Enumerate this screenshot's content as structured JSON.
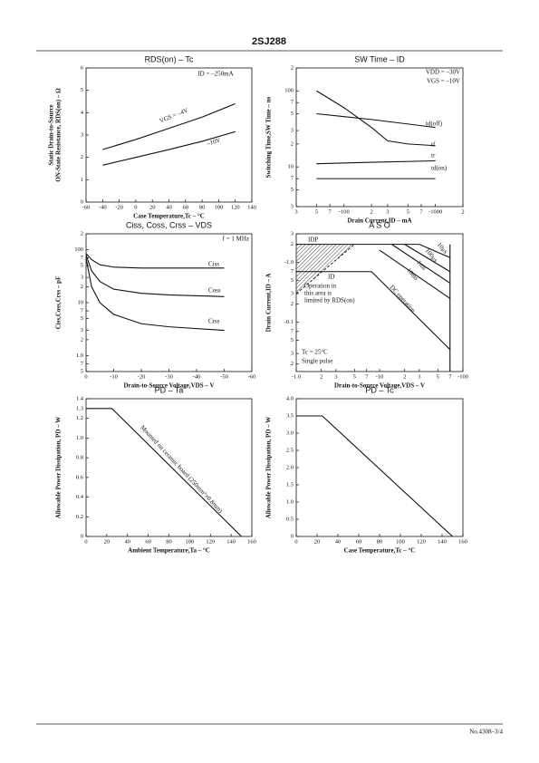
{
  "header": {
    "title": "2SJ288"
  },
  "footer": {
    "text": "No.4308–3/4"
  },
  "chart_data": [
    {
      "type": "line",
      "title": "RDS(on) – Tc",
      "xlabel": "Case Temperature,Tc – °C",
      "ylabel": [
        "Static Drain-to-Source",
        "ON-State Resistance, RDS(on) – Ω"
      ],
      "xlim": [
        -60,
        140
      ],
      "xticks": [
        -60,
        -40,
        -20,
        0,
        20,
        40,
        60,
        80,
        100,
        120,
        140
      ],
      "ylim": [
        0,
        6
      ],
      "yticks": [
        0,
        1,
        2,
        3,
        4,
        5,
        6
      ],
      "annotations": [
        "ID = –250mA"
      ],
      "series": [
        {
          "name": "VGS = –4V",
          "color": "#111111",
          "x": [
            -40,
            0,
            40,
            80,
            120
          ],
          "values": [
            2.35,
            2.8,
            3.3,
            3.8,
            4.4
          ]
        },
        {
          "name": "–10V",
          "color": "#111111",
          "x": [
            -40,
            0,
            40,
            80,
            120
          ],
          "values": [
            1.65,
            2.0,
            2.35,
            2.72,
            3.15
          ]
        }
      ]
    },
    {
      "type": "line",
      "title": "SW Time – ID",
      "xlabel": "Drain Current,ID – mA",
      "ylabel": [
        "Switching Time,SW Time – ns"
      ],
      "xscale": "log",
      "yscale": "log",
      "xlim": [
        -30,
        -2000
      ],
      "xticks": [
        {
          "value": -30,
          "label": "3"
        },
        {
          "value": -50,
          "label": "5"
        },
        {
          "value": -70,
          "label": "7"
        },
        -100,
        {
          "value": -200,
          "label": "2"
        },
        {
          "value": -300,
          "label": "3"
        },
        {
          "value": -500,
          "label": "5"
        },
        {
          "value": -700,
          "label": "7"
        },
        -1000,
        {
          "value": -2000,
          "label": "2"
        }
      ],
      "ylim": [
        3,
        200
      ],
      "yticks": [
        3,
        5,
        7,
        10,
        {
          "value": 20,
          "label": "2"
        },
        {
          "value": 30,
          "label": "3"
        },
        {
          "value": 50,
          "label": "5"
        },
        {
          "value": 70,
          "label": "7"
        },
        100,
        {
          "value": 200,
          "label": "2"
        }
      ],
      "annotations": [
        "VDD = –30V",
        "VGS = –10V"
      ],
      "series": [
        {
          "name": "td(off)",
          "color": "#111111",
          "x": [
            -50,
            -200,
            -1000
          ],
          "values": [
            50,
            42,
            33
          ]
        },
        {
          "name": "tf",
          "color": "#111111",
          "x": [
            -50,
            -100,
            -200,
            -300,
            -500,
            -1000
          ],
          "values": [
            100,
            60,
            33,
            22,
            20,
            19
          ]
        },
        {
          "name": "tr",
          "color": "#111111",
          "x": [
            -50,
            -200,
            -1000
          ],
          "values": [
            11,
            11.5,
            12
          ]
        },
        {
          "name": "td(on)",
          "color": "#111111",
          "x": [
            -50,
            -1000
          ],
          "values": [
            7,
            7
          ]
        }
      ]
    },
    {
      "type": "line",
      "title": "Ciss, Coss, Crss – VDS",
      "xlabel": "Drain-to-Source Voltage,VDS – V",
      "ylabel": [
        "Ciss,Coss,Crss – pF"
      ],
      "yscale": "log",
      "xlim": [
        0,
        -60
      ],
      "xticks": [
        0,
        -10,
        -20,
        -30,
        -40,
        -50,
        -60
      ],
      "ylim": [
        0.5,
        200
      ],
      "yticks": [
        {
          "value": 0.5,
          "label": "5"
        },
        {
          "value": 0.7,
          "label": "7"
        },
        {
          "value": 1,
          "label": "1.0"
        },
        2,
        3,
        5,
        7,
        10,
        {
          "value": 20,
          "label": "2"
        },
        {
          "value": 30,
          "label": "3"
        },
        {
          "value": 50,
          "label": "5"
        },
        {
          "value": 70,
          "label": "7"
        },
        100,
        {
          "value": 200,
          "label": "2"
        }
      ],
      "annotations": [
        "f = 1 MHz"
      ],
      "series": [
        {
          "name": "Ciss",
          "color": "#111111",
          "x": [
            0,
            -2,
            -5,
            -10,
            -20,
            -50
          ],
          "values": [
            85,
            65,
            52,
            47,
            45,
            45
          ]
        },
        {
          "name": "Coss",
          "color": "#111111",
          "x": [
            0,
            -2,
            -5,
            -10,
            -20,
            -30,
            -50
          ],
          "values": [
            80,
            40,
            25,
            18,
            15,
            14,
            13
          ]
        },
        {
          "name": "Crss",
          "color": "#111111",
          "x": [
            0,
            -2,
            -5,
            -10,
            -20,
            -30,
            -50
          ],
          "values": [
            70,
            20,
            10,
            6,
            4,
            3.5,
            3
          ]
        }
      ]
    },
    {
      "type": "line",
      "title": "A S O",
      "xlabel": "Drain-to-Source Voltage,VDS – V",
      "ylabel": [
        "Drain Current,ID – A"
      ],
      "xscale": "log",
      "yscale": "log",
      "xlim": [
        -1,
        -100
      ],
      "xticks": [
        {
          "value": -1,
          "label": "-1.0"
        },
        {
          "value": -2,
          "label": "2"
        },
        {
          "value": -3,
          "label": "3"
        },
        {
          "value": -5,
          "label": "5"
        },
        {
          "value": -7,
          "label": "7"
        },
        -10,
        {
          "value": -20,
          "label": "2"
        },
        {
          "value": -30,
          "label": "3"
        },
        {
          "value": -50,
          "label": "5"
        },
        {
          "value": -70,
          "label": "7"
        },
        -100
      ],
      "ylim": [
        -0.015,
        -3
      ],
      "yticks": [
        {
          "value": -0.02,
          "label": "2"
        },
        {
          "value": -0.03,
          "label": "3"
        },
        {
          "value": -0.05,
          "label": "5"
        },
        {
          "value": -0.07,
          "label": "7"
        },
        -0.1,
        {
          "value": -0.2,
          "label": "2"
        },
        {
          "value": -0.3,
          "label": "3"
        },
        {
          "value": -0.5,
          "label": "5"
        },
        {
          "value": -0.7,
          "label": "7"
        },
        {
          "value": -1,
          "label": "-1.0"
        },
        {
          "value": -2,
          "label": "2"
        },
        {
          "value": -3,
          "label": "3"
        }
      ],
      "annotations": [
        "Operation in",
        "this area is",
        "limited by RDS(on)",
        "Tc = 25°C",
        "Single pulse"
      ],
      "limit_line": {
        "x": [
          -1,
          -5
        ],
        "values": [
          -0.3,
          -2
        ]
      },
      "series": [
        {
          "name": "IDP",
          "color": "#111111",
          "x": [
            -1,
            -30
          ],
          "values": [
            -2,
            -2
          ]
        },
        {
          "name": "ID",
          "color": "#111111",
          "x": [
            -1,
            -8
          ],
          "values": [
            -0.7,
            -0.7
          ]
        },
        {
          "name": "10μs",
          "color": "#111111",
          "x": [
            -30,
            -70
          ],
          "values": [
            -2,
            -1.2
          ]
        },
        {
          "name": "100μs",
          "color": "#111111",
          "x": [
            -20,
            -70
          ],
          "values": [
            -2,
            -0.7
          ]
        },
        {
          "name": "1ms",
          "color": "#111111",
          "x": [
            -14,
            -70
          ],
          "values": [
            -2,
            -0.45
          ]
        },
        {
          "name": "10ms",
          "color": "#111111",
          "x": [
            -10,
            -70
          ],
          "values": [
            -1.6,
            -0.25
          ]
        },
        {
          "name": "DC operation",
          "color": "#111111",
          "x": [
            -8,
            -70
          ],
          "values": [
            -0.7,
            -0.035
          ]
        },
        {
          "color": "#111111",
          "x": [
            -70,
            -70
          ],
          "values": [
            -2,
            -0.015
          ]
        }
      ]
    },
    {
      "type": "line",
      "title": "PD – Ta",
      "xlabel": "Ambient Temperature,Ta – °C",
      "ylabel": [
        "Allowable Power Dissipation, PD – W"
      ],
      "xlim": [
        0,
        160
      ],
      "xticks": [
        0,
        20,
        40,
        60,
        80,
        100,
        120,
        140,
        160
      ],
      "ylim": [
        0,
        1.4
      ],
      "yticks": [
        0,
        0.2,
        0.4,
        0.6,
        0.8,
        {
          "value": 1,
          "label": "1.0"
        },
        1.2,
        1.3,
        1.4
      ],
      "annotations": [
        "Mounted on ceramic board (250mm²×0.8mm)"
      ],
      "series": [
        {
          "color": "#111111",
          "x": [
            0,
            25,
            150
          ],
          "values": [
            1.3,
            1.3,
            0
          ]
        }
      ]
    },
    {
      "type": "line",
      "title": "PD – Tc",
      "xlabel": "Case Temperature,Tc – °C",
      "ylabel": [
        "Allowable Power Dissipation, PD – W"
      ],
      "xlim": [
        0,
        160
      ],
      "xticks": [
        0,
        20,
        40,
        60,
        80,
        100,
        120,
        140,
        160
      ],
      "ylim": [
        0,
        4
      ],
      "yticks": [
        0,
        0.5,
        {
          "value": 1,
          "label": "1.0"
        },
        1.5,
        {
          "value": 2,
          "label": "2.0"
        },
        2.5,
        {
          "value": 3,
          "label": "3.0"
        },
        3.5,
        {
          "value": 4,
          "label": "4.0"
        }
      ],
      "series": [
        {
          "color": "#111111",
          "x": [
            0,
            25,
            150
          ],
          "values": [
            3.5,
            3.5,
            0
          ]
        }
      ]
    }
  ]
}
